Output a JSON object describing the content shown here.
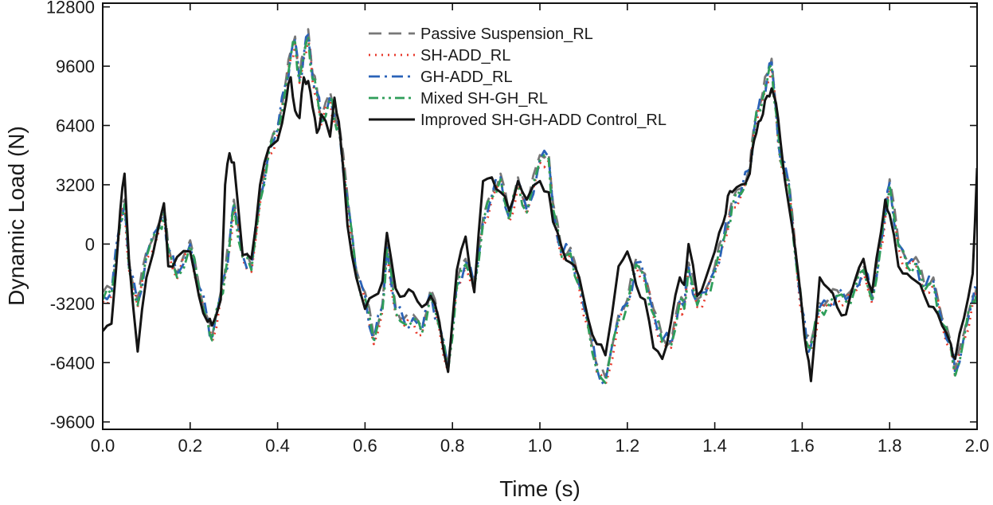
{
  "chart_data": {
    "type": "line",
    "title": "",
    "xlabel": "Time (s)",
    "ylabel": "Dynamic Load (N)",
    "xlim": [
      0.0,
      2.0
    ],
    "ylim": [
      -10000,
      13000
    ],
    "xticks": [
      0.0,
      0.2,
      0.4,
      0.6,
      0.8,
      1.0,
      1.2,
      1.4,
      1.6,
      1.8,
      2.0
    ],
    "xtick_labels": [
      "0.0",
      "0.2",
      "0.4",
      "0.6",
      "0.8",
      "1.0",
      "1.2",
      "1.4",
      "1.6",
      "1.8",
      "2.0"
    ],
    "yticks": [
      12800,
      9600,
      6400,
      3200,
      0,
      -3200,
      -6400,
      -9600
    ],
    "ytick_labels": [
      "12800",
      "9600",
      "6400",
      "3200",
      "0",
      "-3200",
      "-6400",
      "-9600"
    ],
    "grid": false,
    "legend_position": "top-center",
    "x": [
      0.0,
      0.02,
      0.04,
      0.05,
      0.06,
      0.08,
      0.1,
      0.13,
      0.14,
      0.15,
      0.17,
      0.2,
      0.22,
      0.24,
      0.25,
      0.27,
      0.28,
      0.29,
      0.3,
      0.32,
      0.34,
      0.36,
      0.38,
      0.4,
      0.42,
      0.43,
      0.44,
      0.45,
      0.46,
      0.47,
      0.48,
      0.49,
      0.5,
      0.52,
      0.53,
      0.54,
      0.56,
      0.58,
      0.6,
      0.62,
      0.64,
      0.65,
      0.67,
      0.69,
      0.71,
      0.73,
      0.75,
      0.77,
      0.79,
      0.81,
      0.83,
      0.85,
      0.87,
      0.89,
      0.91,
      0.93,
      0.95,
      0.97,
      1.0,
      1.02,
      1.03,
      1.05,
      1.07,
      1.09,
      1.11,
      1.13,
      1.15,
      1.18,
      1.2,
      1.22,
      1.24,
      1.26,
      1.28,
      1.3,
      1.32,
      1.33,
      1.34,
      1.36,
      1.38,
      1.4,
      1.42,
      1.43,
      1.44,
      1.46,
      1.48,
      1.49,
      1.5,
      1.51,
      1.52,
      1.53,
      1.54,
      1.55,
      1.57,
      1.59,
      1.6,
      1.61,
      1.62,
      1.64,
      1.66,
      1.68,
      1.7,
      1.72,
      1.74,
      1.76,
      1.78,
      1.79,
      1.8,
      1.82,
      1.84,
      1.86,
      1.88,
      1.9,
      1.92,
      1.94,
      1.95,
      1.97,
      1.99,
      2.0
    ],
    "series": [
      {
        "name": "Passive Suspension_RL",
        "color": "#777777",
        "dash": "dash",
        "values": [
          -2600,
          -2400,
          1400,
          2400,
          -1000,
          -3000,
          -400,
          1200,
          1900,
          -100,
          -1600,
          200,
          -2200,
          -4000,
          -5000,
          -2600,
          -1400,
          200,
          2400,
          -400,
          -1200,
          2600,
          5200,
          6400,
          9000,
          10400,
          11200,
          9000,
          10400,
          11600,
          9200,
          8400,
          6800,
          8200,
          7000,
          6600,
          2600,
          -1400,
          -2600,
          -5000,
          -3200,
          0,
          -3400,
          -4000,
          -3800,
          -4500,
          -2400,
          -4200,
          -6500,
          -2000,
          -800,
          -2000,
          1400,
          2800,
          3800,
          1600,
          3600,
          2000,
          4800,
          4900,
          2200,
          -400,
          -200,
          -2000,
          -4100,
          -6500,
          -7200,
          -3800,
          -3000,
          -800,
          -1600,
          -3500,
          -5000,
          -5300,
          -2800,
          -3200,
          -1000,
          -3000,
          -2400,
          -1200,
          500,
          1200,
          2400,
          3000,
          4200,
          6400,
          7600,
          8200,
          9200,
          10000,
          7400,
          4800,
          3400,
          -1600,
          -3400,
          -5000,
          -5300,
          -3200,
          -3000,
          -2500,
          -2800,
          -2200,
          -1100,
          -2800,
          200,
          1800,
          3500,
          200,
          -900,
          -700,
          -2200,
          -1800,
          -4000,
          -5300,
          -6800,
          -4800,
          -2800,
          -2200
        ],
        "jitter": 0.35
      },
      {
        "name": "SH-ADD_RL",
        "color": "#e8392b",
        "dash": "dot",
        "values": [
          -3100,
          -2800,
          1000,
          2100,
          -1400,
          -3400,
          -800,
          800,
          1600,
          -400,
          -1900,
          -200,
          -2500,
          -4300,
          -5300,
          -2900,
          -1800,
          -300,
          2000,
          -800,
          -1500,
          2200,
          4800,
          5900,
          8600,
          10000,
          10800,
          8700,
          10000,
          11100,
          8800,
          8000,
          6400,
          7800,
          6600,
          6200,
          2200,
          -1800,
          -3000,
          -5400,
          -3600,
          -400,
          -3800,
          -4400,
          -4200,
          -4900,
          -2800,
          -4600,
          -6900,
          -2400,
          -1200,
          -2400,
          1000,
          2400,
          3400,
          1200,
          3200,
          1600,
          4400,
          4500,
          1800,
          -800,
          -600,
          -2400,
          -4500,
          -6900,
          -7600,
          -4200,
          -3400,
          -1200,
          -2000,
          -3900,
          -5400,
          -5600,
          -3200,
          -3600,
          -1400,
          -3400,
          -2800,
          -1600,
          100,
          800,
          2000,
          2600,
          3800,
          6000,
          7200,
          7800,
          8700,
          9500,
          7000,
          4400,
          3000,
          -2000,
          -3800,
          -5400,
          -5700,
          -3600,
          -3400,
          -2900,
          -3200,
          -2600,
          -1500,
          -3200,
          -200,
          1400,
          3100,
          -200,
          -1300,
          -1100,
          -2600,
          -2200,
          -4400,
          -5700,
          -7200,
          -5200,
          -3200,
          -2600
        ],
        "jitter": 0.45
      },
      {
        "name": "GH-ADD_RL",
        "color": "#2a63b8",
        "dash": "dashdot",
        "values": [
          -2800,
          -2600,
          1200,
          2200,
          -1200,
          -3200,
          -600,
          1000,
          1700,
          -300,
          -1700,
          0,
          -2300,
          -4100,
          -5100,
          -2700,
          -1600,
          0,
          2200,
          -600,
          -1300,
          2400,
          5000,
          6200,
          8800,
          10200,
          11000,
          8900,
          10200,
          11300,
          9000,
          8200,
          6600,
          8000,
          6800,
          6400,
          2400,
          -1600,
          -2800,
          -5200,
          -3400,
          -200,
          -3600,
          -4200,
          -4000,
          -4700,
          -2600,
          -4400,
          -6700,
          -2200,
          -1000,
          -2200,
          1200,
          2600,
          3600,
          1400,
          3400,
          1800,
          4600,
          4700,
          2000,
          -600,
          -400,
          -2200,
          -4300,
          -6700,
          -7400,
          -4000,
          -3200,
          -1000,
          -1800,
          -3700,
          -5200,
          -5400,
          -3000,
          -3400,
          -1200,
          -3200,
          -2600,
          -1400,
          300,
          1000,
          2200,
          2800,
          4000,
          6200,
          7400,
          8000,
          9000,
          9800,
          7200,
          4600,
          3200,
          -1800,
          -3600,
          -5200,
          -5500,
          -3400,
          -3200,
          -2700,
          -3000,
          -2400,
          -1300,
          -3000,
          0,
          1600,
          3300,
          0,
          -1100,
          -900,
          -2400,
          -2000,
          -4200,
          -5500,
          -7000,
          -5000,
          -3000,
          -2400
        ],
        "jitter": 0.55
      },
      {
        "name": "Mixed SH-GH_RL",
        "color": "#2f9e5a",
        "dash": "dashdotdot",
        "values": [
          -3000,
          -2700,
          1100,
          2150,
          -1300,
          -3300,
          -700,
          900,
          1650,
          -350,
          -1800,
          -100,
          -2400,
          -4200,
          -5200,
          -2800,
          -1700,
          -100,
          2100,
          -700,
          -1400,
          2300,
          4900,
          6050,
          8700,
          10100,
          10900,
          8800,
          10100,
          11200,
          8900,
          8100,
          6500,
          7900,
          6700,
          6300,
          2300,
          -1700,
          -2900,
          -5300,
          -3500,
          -300,
          -3700,
          -4300,
          -4100,
          -4800,
          -2700,
          -4500,
          -6800,
          -2300,
          -1100,
          -2300,
          1100,
          2500,
          3500,
          1300,
          3300,
          1700,
          4500,
          4600,
          1900,
          -700,
          -500,
          -2300,
          -4400,
          -6800,
          -7500,
          -4100,
          -3300,
          -1100,
          -1900,
          -3800,
          -5300,
          -5500,
          -3100,
          -3500,
          -1300,
          -3300,
          -2700,
          -1500,
          200,
          900,
          2100,
          2700,
          3900,
          6100,
          7300,
          7900,
          8850,
          9650,
          7100,
          4500,
          3100,
          -1900,
          -3700,
          -5300,
          -5600,
          -3500,
          -3300,
          -2800,
          -3100,
          -2500,
          -1400,
          -3100,
          -100,
          1500,
          3200,
          -100,
          -1200,
          -1000,
          -2500,
          -2100,
          -4300,
          -5600,
          -7100,
          -5100,
          -3100,
          -2500
        ],
        "jitter": 0.5
      },
      {
        "name": "Improved SH-GH-ADD Control_RL",
        "color": "#141414",
        "dash": "solid",
        "values": [
          -4700,
          -4300,
          1800,
          3800,
          -800,
          -5800,
          -1800,
          1200,
          2200,
          -1200,
          -700,
          -400,
          -2800,
          -4200,
          -4400,
          -3000,
          3200,
          4900,
          4400,
          -600,
          -800,
          3200,
          5200,
          5600,
          7800,
          9000,
          7200,
          6800,
          9000,
          8800,
          7400,
          6000,
          7000,
          5800,
          7900,
          6600,
          1000,
          -1800,
          -3500,
          -2800,
          -2000,
          600,
          -2400,
          -2800,
          -2600,
          -3400,
          -2800,
          -4200,
          -6900,
          -1400,
          400,
          -2600,
          3400,
          3600,
          2800,
          1800,
          3400,
          2400,
          3400,
          2800,
          1200,
          -200,
          -1000,
          -1800,
          -4000,
          -5400,
          -6000,
          -1200,
          -400,
          -2200,
          -3000,
          -5600,
          -6200,
          -4200,
          -1800,
          -2200,
          0,
          -2800,
          -1800,
          -400,
          1200,
          2600,
          2800,
          3200,
          3800,
          5600,
          6600,
          7000,
          8000,
          8400,
          7600,
          5600,
          2000,
          -1400,
          -3600,
          -5800,
          -7400,
          -1800,
          -2400,
          -3400,
          -3800,
          -2000,
          -800,
          -2600,
          600,
          2400,
          1600,
          -1200,
          -1600,
          -2000,
          -2800,
          -3400,
          -4400,
          -5400,
          -6200,
          -4000,
          -1600,
          4100
        ],
        "jitter": 0.3
      }
    ]
  }
}
